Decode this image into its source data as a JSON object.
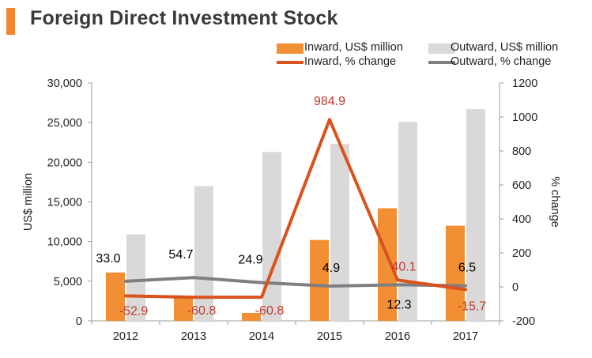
{
  "title": "Foreign Direct Investment Stock",
  "legend": {
    "inward_bar": "Inward, US$ million",
    "outward_bar": "Outward, US$ million",
    "inward_line": "Inward, % change",
    "outward_line": "Outward, % change"
  },
  "colors": {
    "accent": "#f0862e",
    "inward_bar": "#f28e33",
    "outward_bar": "#d9d9d9",
    "inward_line": "#d9531e",
    "outward_line": "#7f7f7f",
    "inward_label": "#c0392b",
    "outward_label": "#000000"
  },
  "chart_data": {
    "type": "bar",
    "title": "Foreign Direct Investment Stock",
    "categories": [
      "2012",
      "2013",
      "2014",
      "2015",
      "2016",
      "2017"
    ],
    "ylabel": "US$ million",
    "ylabel_right": "% change",
    "ylim": [
      0,
      30000
    ],
    "ylim_right": [
      -200,
      1200
    ],
    "yticks": [
      0,
      5000,
      10000,
      15000,
      20000,
      25000,
      30000
    ],
    "yticks_labels": [
      "0",
      "5,000",
      "10,000",
      "15,000",
      "20,000",
      "25,000",
      "30,000"
    ],
    "yticks_right": [
      -200,
      0,
      200,
      400,
      600,
      800,
      1000,
      1200
    ],
    "yticks_right_labels": [
      "-200",
      "0",
      "200",
      "400",
      "600",
      "800",
      "1000",
      "1200"
    ],
    "series": [
      {
        "name": "Inward, US$ million",
        "kind": "bar",
        "axis": "left",
        "values": [
          6100,
          2900,
          1000,
          10200,
          14200,
          12000
        ]
      },
      {
        "name": "Outward, US$ million",
        "kind": "bar",
        "axis": "left",
        "values": [
          10900,
          17000,
          21300,
          22300,
          25100,
          26700
        ]
      },
      {
        "name": "Inward, % change",
        "kind": "line",
        "axis": "right",
        "values": [
          -52.9,
          -60.8,
          -60.8,
          984.9,
          40.1,
          -15.7
        ],
        "labels": [
          "-52.9",
          "-60.8",
          "-60.8",
          "984.9",
          "40.1",
          "-15.7"
        ]
      },
      {
        "name": "Outward, % change",
        "kind": "line",
        "axis": "right",
        "values": [
          33.0,
          54.7,
          24.9,
          4.9,
          12.3,
          6.5
        ],
        "labels": [
          "33.0",
          "54.7",
          "24.9",
          "4.9",
          "12.3",
          "6.5"
        ]
      }
    ]
  }
}
